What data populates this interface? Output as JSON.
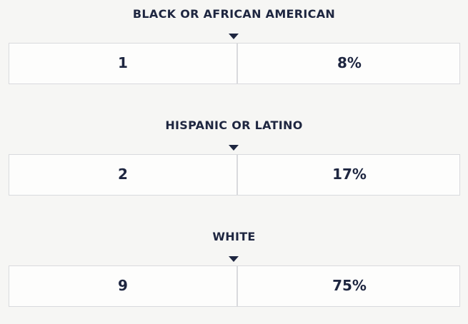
{
  "sections": [
    {
      "label": "BLACK OR AFRICAN AMERICAN",
      "count": 1,
      "percent": "8%"
    },
    {
      "label": "HISPANIC OR LATINO",
      "count": 2,
      "percent": "17%"
    },
    {
      "label": "WHITE",
      "count": 9,
      "percent": "75%"
    }
  ]
}
